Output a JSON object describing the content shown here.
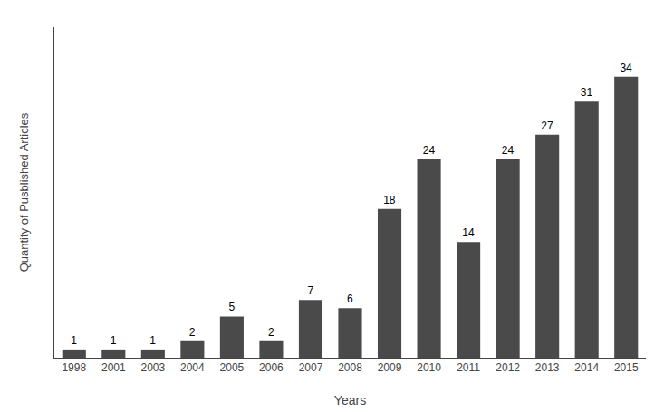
{
  "chart_data": {
    "type": "bar",
    "categories": [
      "1998",
      "2001",
      "2003",
      "2004",
      "2005",
      "2006",
      "2007",
      "2008",
      "2009",
      "2010",
      "2011",
      "2012",
      "2013",
      "2014",
      "2015"
    ],
    "values": [
      1,
      1,
      1,
      2,
      5,
      2,
      7,
      6,
      18,
      24,
      14,
      24,
      27,
      31,
      34
    ],
    "color": "#4a4a4a",
    "xlabel": "Years",
    "ylabel": "Quantity of Pusblished Articles",
    "ylim": [
      0,
      40
    ],
    "yticks": [],
    "grid": false,
    "data_labels": true,
    "tick_labels": "x"
  }
}
